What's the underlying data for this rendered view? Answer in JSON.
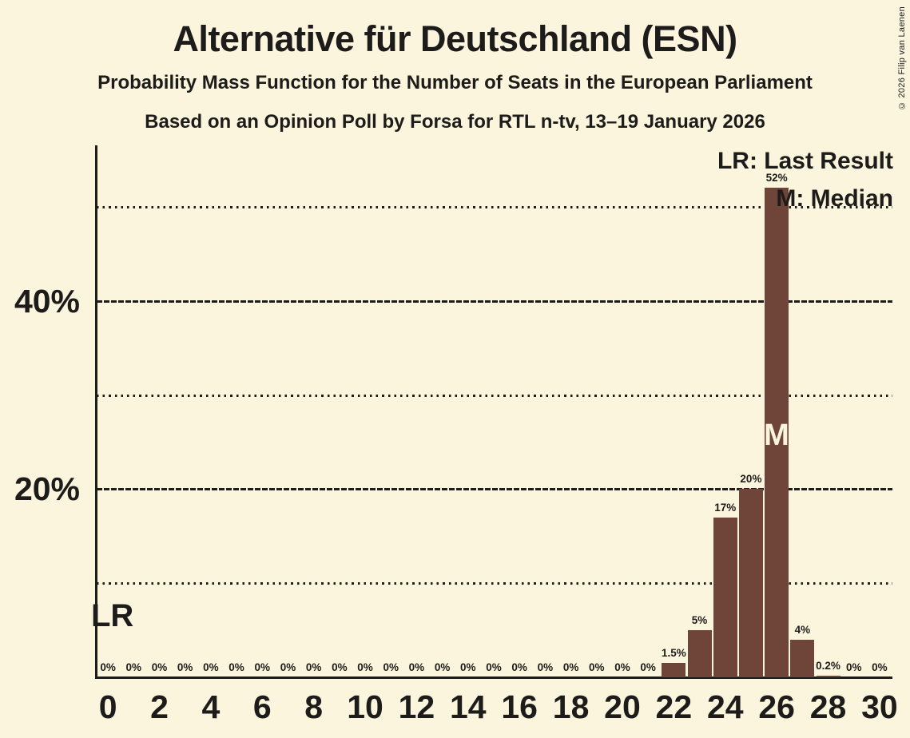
{
  "title": "Alternative für Deutschland (ESN)",
  "subtitle1": "Probability Mass Function for the Number of Seats in the European Parliament",
  "subtitle2": "Based on an Opinion Poll by Forsa for RTL n-tv, 13–19 January 2026",
  "copyright": "© 2026 Filip van Laenen",
  "legend": {
    "lr": "LR: Last Result",
    "m": "M: Median"
  },
  "annotations": {
    "last_result": "LR",
    "median": "M"
  },
  "y_axis": {
    "tick_labels": [
      "20%",
      "40%"
    ],
    "tick_values": [
      20,
      40
    ]
  },
  "x_axis": {
    "tick_values": [
      0,
      2,
      4,
      6,
      8,
      10,
      12,
      14,
      16,
      18,
      20,
      22,
      24,
      26,
      28,
      30
    ]
  },
  "colors": {
    "background": "#FBF5DD",
    "bar": "#6F4439",
    "text": "#1D1C1A",
    "median_letter": "#FBF5DD"
  },
  "chart_data": {
    "type": "bar",
    "title": "Alternative für Deutschland (ESN)",
    "subtitle": "Probability Mass Function for the Number of Seats in the European Parliament",
    "source": "Based on an Opinion Poll by Forsa for RTL n-tv, 13–19 January 2026",
    "xlabel": "",
    "ylabel": "",
    "x": [
      0,
      1,
      2,
      3,
      4,
      5,
      6,
      7,
      8,
      9,
      10,
      11,
      12,
      13,
      14,
      15,
      16,
      17,
      18,
      19,
      20,
      21,
      22,
      23,
      24,
      25,
      26,
      27,
      28,
      29,
      30
    ],
    "values": [
      0,
      0,
      0,
      0,
      0,
      0,
      0,
      0,
      0,
      0,
      0,
      0,
      0,
      0,
      0,
      0,
      0,
      0,
      0,
      0,
      0,
      0,
      1.5,
      5,
      17,
      20,
      52,
      4,
      0.2,
      0,
      0
    ],
    "bar_labels": [
      "0%",
      "0%",
      "0%",
      "0%",
      "0%",
      "0%",
      "0%",
      "0%",
      "0%",
      "0%",
      "0%",
      "0%",
      "0%",
      "0%",
      "0%",
      "0%",
      "0%",
      "0%",
      "0%",
      "0%",
      "0%",
      "0%",
      "1.5%",
      "5%",
      "17%",
      "20%",
      "52%",
      "4%",
      "0.2%",
      "0%",
      "0%"
    ],
    "median_seat": 26,
    "last_result_seat": 0,
    "ylim": [
      0,
      56.5
    ],
    "grid": {
      "dashed_at": [
        20,
        40
      ],
      "dotted_at": [
        10,
        30,
        50
      ]
    },
    "legend_position": "top-right"
  }
}
